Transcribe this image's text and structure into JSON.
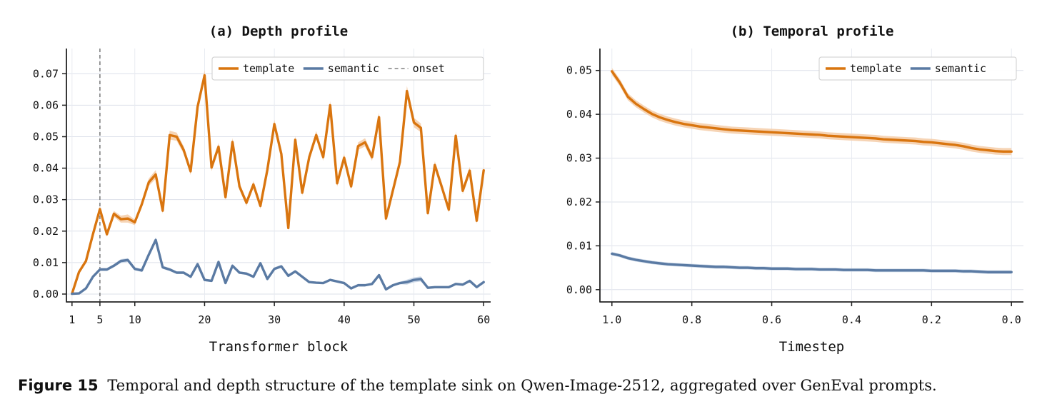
{
  "chart_data": [
    {
      "type": "line",
      "title": "(a) Depth profile",
      "xlabel": "Transformer block",
      "ylabel": "",
      "xlim": [
        0.2,
        61
      ],
      "ylim": [
        -0.0025,
        0.078
      ],
      "xticks": [
        1,
        5,
        10,
        20,
        30,
        40,
        50,
        60
      ],
      "yticks": [
        0.0,
        0.01,
        0.02,
        0.03,
        0.04,
        0.05,
        0.06,
        0.07
      ],
      "ytick_labels": [
        "0.00",
        "0.01",
        "0.02",
        "0.03",
        "0.04",
        "0.05",
        "0.06",
        "0.07"
      ],
      "grid": true,
      "legend_position": "top-right",
      "onset": {
        "name": "onset",
        "x": 5,
        "color": "#808080"
      },
      "x": [
        1,
        2,
        3,
        4,
        5,
        6,
        7,
        8,
        9,
        10,
        11,
        12,
        13,
        14,
        15,
        16,
        17,
        18,
        19,
        20,
        21,
        22,
        23,
        24,
        25,
        26,
        27,
        28,
        29,
        30,
        31,
        32,
        33,
        34,
        35,
        36,
        37,
        38,
        39,
        40,
        41,
        42,
        43,
        44,
        45,
        46,
        47,
        48,
        49,
        50,
        51,
        52,
        53,
        54,
        55,
        56,
        57,
        58,
        59,
        60
      ],
      "series": [
        {
          "name": "template",
          "color": "#d9750f",
          "band_color": "#f5cda8",
          "values": [
            0.0001,
            0.007,
            0.0105,
            0.019,
            0.027,
            0.019,
            0.0255,
            0.0238,
            0.024,
            0.0228,
            0.0285,
            0.0355,
            0.038,
            0.0265,
            0.0505,
            0.05,
            0.0458,
            0.039,
            0.0595,
            0.0695,
            0.0402,
            0.0468,
            0.0308,
            0.0483,
            0.0342,
            0.029,
            0.0348,
            0.028,
            0.0395,
            0.054,
            0.0445,
            0.021,
            0.049,
            0.0322,
            0.0435,
            0.0505,
            0.0435,
            0.06,
            0.0352,
            0.0433,
            0.0342,
            0.047,
            0.0482,
            0.0435,
            0.0562,
            0.024,
            0.033,
            0.042,
            0.0645,
            0.0545,
            0.0528,
            0.0257,
            0.041,
            0.034,
            0.0268,
            0.0503,
            0.0328,
            0.0392,
            0.0233,
            0.0393
          ],
          "band": [
            0.0003,
            0.0005,
            0.0006,
            0.0008,
            0.0009,
            0.0008,
            0.0009,
            0.0011,
            0.0013,
            0.0009,
            0.001,
            0.0012,
            0.0014,
            0.001,
            0.0014,
            0.0013,
            0.0012,
            0.0012,
            0.0014,
            0.0016,
            0.0012,
            0.0012,
            0.001,
            0.0013,
            0.0011,
            0.001,
            0.0011,
            0.001,
            0.0012,
            0.0014,
            0.0012,
            0.0009,
            0.0013,
            0.001,
            0.0012,
            0.0013,
            0.0012,
            0.0014,
            0.0011,
            0.0012,
            0.0011,
            0.0012,
            0.0013,
            0.0012,
            0.0014,
            0.0009,
            0.0011,
            0.0012,
            0.0016,
            0.0015,
            0.0014,
            0.0009,
            0.0012,
            0.0011,
            0.0009,
            0.0014,
            0.0011,
            0.0012,
            0.001,
            0.0012
          ]
        },
        {
          "name": "semantic",
          "color": "#5a7aa3",
          "band_color": "#c4d2e4",
          "values": [
            0.0001,
            0.0002,
            0.0018,
            0.0055,
            0.0078,
            0.0078,
            0.009,
            0.0105,
            0.0108,
            0.008,
            0.0075,
            0.0125,
            0.0172,
            0.0085,
            0.0078,
            0.0068,
            0.0068,
            0.0055,
            0.0095,
            0.0045,
            0.0042,
            0.0102,
            0.0035,
            0.009,
            0.0068,
            0.0065,
            0.0055,
            0.0098,
            0.0048,
            0.008,
            0.0088,
            0.0058,
            0.0072,
            0.0055,
            0.0038,
            0.0036,
            0.0035,
            0.0045,
            0.004,
            0.0035,
            0.0018,
            0.0028,
            0.0028,
            0.0032,
            0.006,
            0.0015,
            0.0028,
            0.0035,
            0.0038,
            0.0045,
            0.0048,
            0.002,
            0.0022,
            0.0022,
            0.0022,
            0.0032,
            0.003,
            0.0042,
            0.0022,
            0.0038
          ],
          "band": [
            0.0002,
            0.0002,
            0.0003,
            0.0004,
            0.0005,
            0.0005,
            0.0005,
            0.0006,
            0.0006,
            0.0005,
            0.0005,
            0.0006,
            0.0008,
            0.0005,
            0.0005,
            0.0004,
            0.0004,
            0.0004,
            0.0005,
            0.0004,
            0.0004,
            0.0005,
            0.0003,
            0.0005,
            0.0004,
            0.0004,
            0.0004,
            0.0005,
            0.0004,
            0.0005,
            0.0005,
            0.0004,
            0.0004,
            0.0004,
            0.0003,
            0.0003,
            0.0003,
            0.0004,
            0.0003,
            0.0003,
            0.0003,
            0.0003,
            0.0003,
            0.0003,
            0.0004,
            0.0003,
            0.0003,
            0.0004,
            0.0008,
            0.0008,
            0.0008,
            0.0003,
            0.0003,
            0.0003,
            0.0003,
            0.0003,
            0.0003,
            0.0004,
            0.0003,
            0.0004
          ]
        }
      ]
    },
    {
      "type": "line",
      "title": "(b) Temporal profile",
      "xlabel": "Timestep",
      "ylabel": "",
      "xlim": [
        1.03,
        -0.03
      ],
      "ylim": [
        -0.0028,
        0.055
      ],
      "xticks": [
        1.0,
        0.8,
        0.6,
        0.4,
        0.2,
        0.0
      ],
      "xtick_labels": [
        "1.0",
        "0.8",
        "0.6",
        "0.4",
        "0.2",
        "0.0"
      ],
      "yticks": [
        0.0,
        0.01,
        0.02,
        0.03,
        0.04,
        0.05
      ],
      "ytick_labels": [
        "0.00",
        "0.01",
        "0.02",
        "0.03",
        "0.04",
        "0.05"
      ],
      "grid": true,
      "legend_position": "top-right",
      "x": [
        1.0,
        0.98,
        0.96,
        0.94,
        0.92,
        0.9,
        0.88,
        0.86,
        0.84,
        0.82,
        0.8,
        0.78,
        0.76,
        0.74,
        0.72,
        0.7,
        0.68,
        0.66,
        0.64,
        0.62,
        0.6,
        0.58,
        0.56,
        0.54,
        0.52,
        0.5,
        0.48,
        0.46,
        0.44,
        0.42,
        0.4,
        0.38,
        0.36,
        0.34,
        0.32,
        0.3,
        0.28,
        0.26,
        0.24,
        0.22,
        0.2,
        0.18,
        0.16,
        0.14,
        0.12,
        0.1,
        0.08,
        0.06,
        0.04,
        0.02,
        0.0
      ],
      "series": [
        {
          "name": "template",
          "color": "#d9750f",
          "band_color": "#f5cda8",
          "values": [
            0.0498,
            0.0472,
            0.044,
            0.0424,
            0.0412,
            0.0401,
            0.0393,
            0.0387,
            0.0382,
            0.0378,
            0.0375,
            0.0372,
            0.037,
            0.0368,
            0.0366,
            0.0364,
            0.0363,
            0.0362,
            0.0361,
            0.036,
            0.0359,
            0.0358,
            0.0357,
            0.0356,
            0.0355,
            0.0354,
            0.0353,
            0.0351,
            0.035,
            0.0349,
            0.0348,
            0.0347,
            0.0346,
            0.0345,
            0.0343,
            0.0342,
            0.0341,
            0.034,
            0.0339,
            0.0337,
            0.0336,
            0.0334,
            0.0332,
            0.033,
            0.0327,
            0.0323,
            0.032,
            0.0318,
            0.0316,
            0.0315,
            0.0315
          ],
          "band": [
            0.0008,
            0.0008,
            0.0008,
            0.0008,
            0.0008,
            0.0008,
            0.0008,
            0.0008,
            0.0008,
            0.0008,
            0.0008,
            0.0008,
            0.0008,
            0.0008,
            0.0008,
            0.0008,
            0.0008,
            0.0008,
            0.0008,
            0.0008,
            0.0008,
            0.0008,
            0.0008,
            0.0008,
            0.0008,
            0.0008,
            0.0008,
            0.0008,
            0.0008,
            0.0008,
            0.0008,
            0.0008,
            0.0008,
            0.0008,
            0.0008,
            0.0008,
            0.0008,
            0.0008,
            0.0008,
            0.0008,
            0.0008,
            0.0008,
            0.0008,
            0.0008,
            0.0008,
            0.0008,
            0.0008,
            0.0008,
            0.0008,
            0.0008,
            0.0008
          ]
        },
        {
          "name": "semantic",
          "color": "#5a7aa3",
          "band_color": "#c4d2e4",
          "values": [
            0.0082,
            0.0078,
            0.0072,
            0.0068,
            0.0065,
            0.0062,
            0.006,
            0.0058,
            0.0057,
            0.0056,
            0.0055,
            0.0054,
            0.0053,
            0.0052,
            0.0052,
            0.0051,
            0.005,
            0.005,
            0.0049,
            0.0049,
            0.0048,
            0.0048,
            0.0048,
            0.0047,
            0.0047,
            0.0047,
            0.0046,
            0.0046,
            0.0046,
            0.0045,
            0.0045,
            0.0045,
            0.0045,
            0.0044,
            0.0044,
            0.0044,
            0.0044,
            0.0044,
            0.0044,
            0.0044,
            0.0043,
            0.0043,
            0.0043,
            0.0043,
            0.0042,
            0.0042,
            0.0041,
            0.004,
            0.004,
            0.004,
            0.004
          ],
          "band": [
            0.0004,
            0.0004,
            0.0004,
            0.0004,
            0.0004,
            0.0004,
            0.0004,
            0.0004,
            0.0004,
            0.0004,
            0.0004,
            0.0004,
            0.0004,
            0.0004,
            0.0004,
            0.0004,
            0.0004,
            0.0004,
            0.0004,
            0.0004,
            0.0004,
            0.0004,
            0.0004,
            0.0004,
            0.0004,
            0.0004,
            0.0004,
            0.0004,
            0.0004,
            0.0004,
            0.0004,
            0.0004,
            0.0004,
            0.0004,
            0.0004,
            0.0004,
            0.0004,
            0.0004,
            0.0004,
            0.0004,
            0.0004,
            0.0004,
            0.0004,
            0.0004,
            0.0004,
            0.0004,
            0.0004,
            0.0004,
            0.0004,
            0.0004,
            0.0004
          ]
        }
      ]
    }
  ],
  "caption": {
    "label": "Figure 15",
    "text": "Temporal and depth structure of the template sink on Qwen-Image-2512, aggregated over GenEval prompts."
  }
}
